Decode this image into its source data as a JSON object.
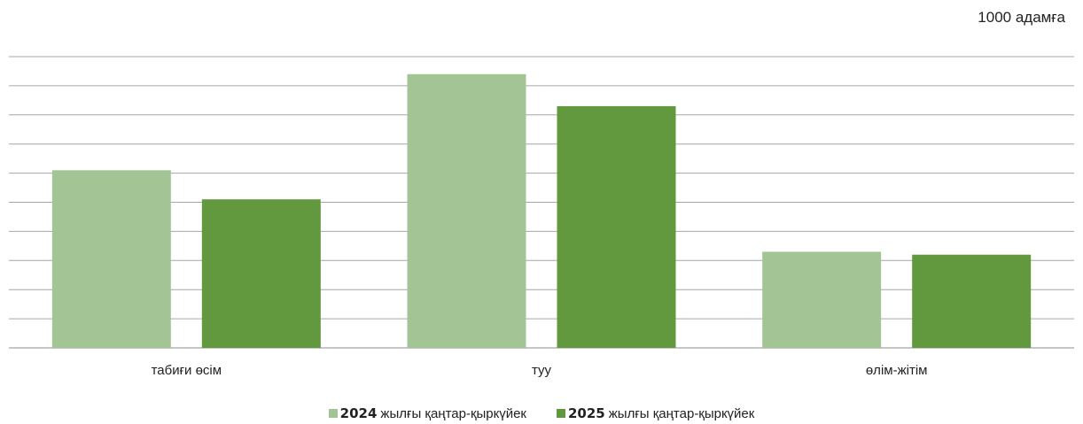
{
  "unit_label": "1000 адамға",
  "chart_data": {
    "type": "bar",
    "categories": [
      "табиғи өсім",
      "туу",
      "өлім-жітім"
    ],
    "series": [
      {
        "name": "жылғы қаңтар-қыркүйек",
        "year": "2024",
        "color": "#a3c495",
        "values": [
          6.1,
          9.4,
          3.3
        ]
      },
      {
        "name": "жылғы қаңтар-қыркүйек",
        "year": "2025",
        "color": "#62993e",
        "values": [
          5.1,
          8.3,
          3.2
        ]
      }
    ],
    "ylim": [
      0,
      10
    ],
    "grid": true,
    "legend": "bottom"
  }
}
